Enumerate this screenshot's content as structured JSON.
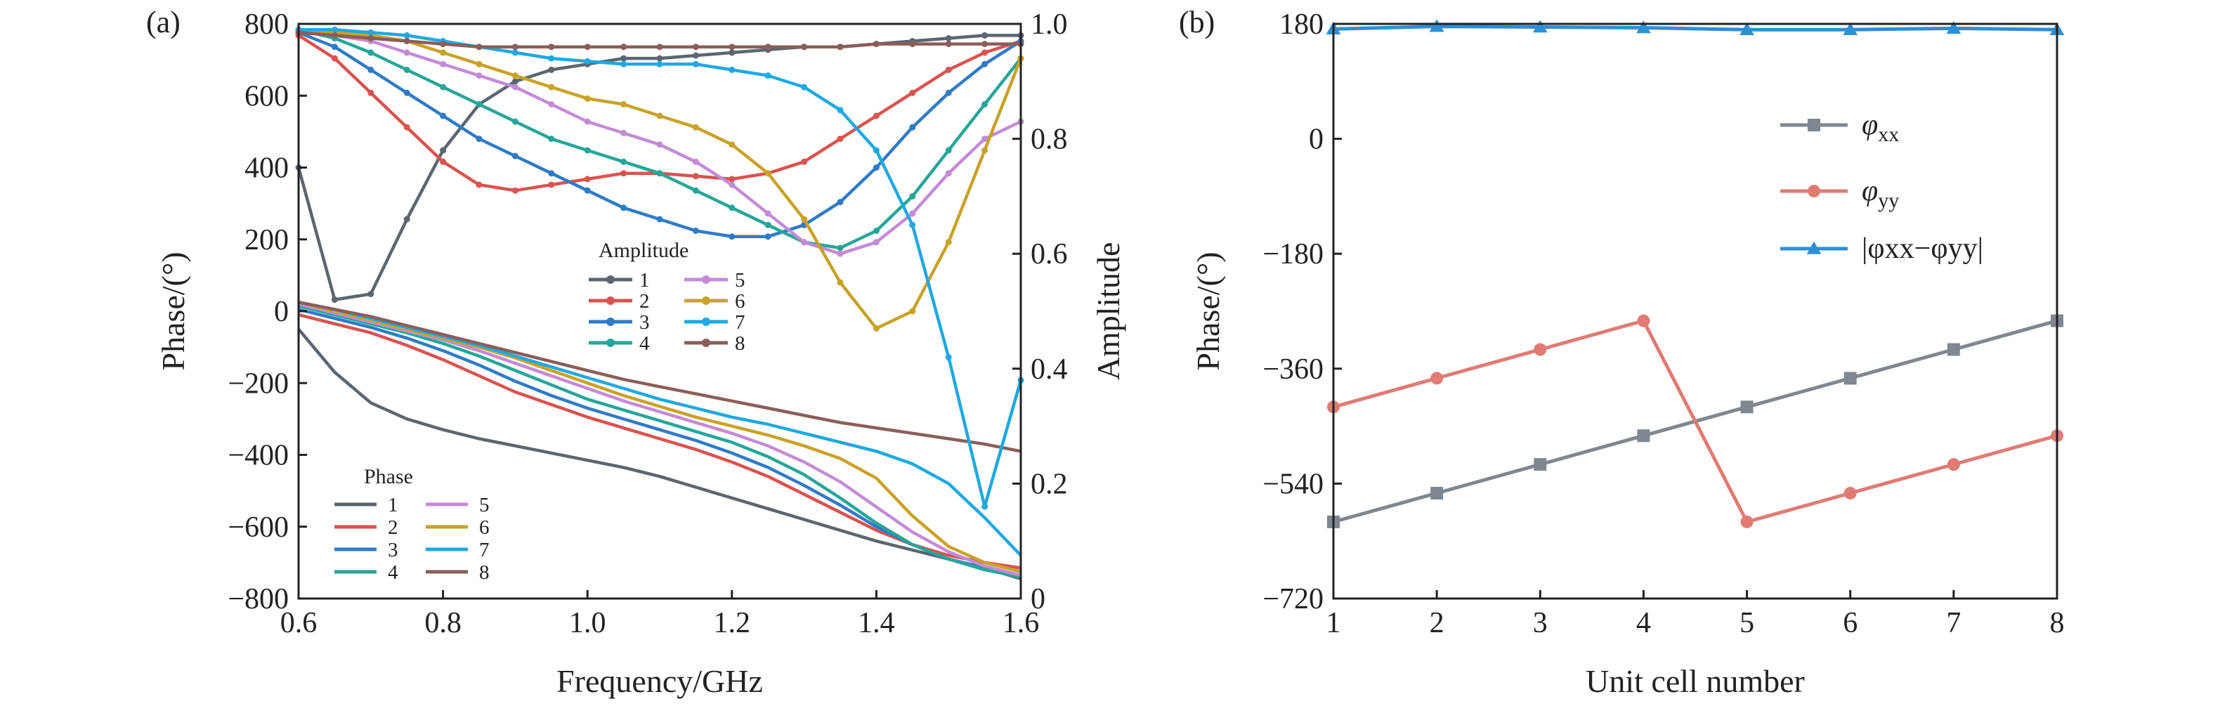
{
  "chart_data": [
    {
      "panel": "(a)",
      "type": "line",
      "xlabel": "Frequency/GHz",
      "ylabel_left": "Phase/(°)",
      "ylabel_right": "Amplitude",
      "xlim": [
        0.6,
        1.6
      ],
      "ylim_left": [
        -800,
        800
      ],
      "ylim_right": [
        0,
        1.0
      ],
      "xticks": [
        "0.6",
        "0.8",
        "1.0",
        "1.2",
        "1.4",
        "1.6"
      ],
      "yticks_left": [
        "800",
        "600",
        "400",
        "200",
        "0",
        "−200",
        "−400",
        "−600",
        "−800"
      ],
      "yticks_right": [
        "1.0",
        "0.8",
        "0.6",
        "0.4",
        "0.2",
        "0"
      ],
      "grid": false,
      "amplitude_legend_title": "Amplitude",
      "phase_legend_title": "Phase",
      "x": [
        0.6,
        0.65,
        0.7,
        0.75,
        0.8,
        0.85,
        0.9,
        0.95,
        1.0,
        1.05,
        1.1,
        1.15,
        1.2,
        1.25,
        1.3,
        1.35,
        1.4,
        1.45,
        1.5,
        1.55,
        1.6
      ],
      "amplitude_series": [
        {
          "name": "1",
          "color": "#5b6670",
          "values": [
            0.75,
            0.52,
            0.53,
            0.66,
            0.78,
            0.86,
            0.9,
            0.92,
            0.93,
            0.94,
            0.94,
            0.945,
            0.95,
            0.955,
            0.96,
            0.96,
            0.965,
            0.97,
            0.975,
            0.98,
            0.98
          ]
        },
        {
          "name": "2",
          "color": "#d9534f",
          "values": [
            0.98,
            0.94,
            0.88,
            0.82,
            0.76,
            0.72,
            0.71,
            0.72,
            0.73,
            0.74,
            0.74,
            0.735,
            0.73,
            0.74,
            0.76,
            0.8,
            0.84,
            0.88,
            0.92,
            0.95,
            0.97
          ]
        },
        {
          "name": "3",
          "color": "#2f7bc7",
          "values": [
            0.985,
            0.96,
            0.92,
            0.88,
            0.84,
            0.8,
            0.77,
            0.74,
            0.71,
            0.68,
            0.66,
            0.64,
            0.63,
            0.63,
            0.65,
            0.69,
            0.75,
            0.82,
            0.88,
            0.93,
            0.97
          ]
        },
        {
          "name": "4",
          "color": "#26a69a",
          "values": [
            0.99,
            0.975,
            0.95,
            0.92,
            0.89,
            0.86,
            0.83,
            0.8,
            0.78,
            0.76,
            0.74,
            0.71,
            0.68,
            0.65,
            0.62,
            0.61,
            0.64,
            0.7,
            0.78,
            0.86,
            0.94
          ]
        },
        {
          "name": "5",
          "color": "#c48bd8",
          "values": [
            0.99,
            0.98,
            0.97,
            0.95,
            0.93,
            0.91,
            0.89,
            0.86,
            0.83,
            0.81,
            0.79,
            0.76,
            0.72,
            0.67,
            0.62,
            0.6,
            0.62,
            0.67,
            0.74,
            0.8,
            0.83
          ]
        },
        {
          "name": "6",
          "color": "#c9a227",
          "values": [
            0.99,
            0.985,
            0.98,
            0.97,
            0.95,
            0.93,
            0.91,
            0.89,
            0.87,
            0.86,
            0.84,
            0.82,
            0.79,
            0.74,
            0.66,
            0.55,
            0.47,
            0.5,
            0.62,
            0.78,
            0.94
          ]
        },
        {
          "name": "7",
          "color": "#1ea9e1",
          "values": [
            0.99,
            0.99,
            0.985,
            0.98,
            0.97,
            0.96,
            0.95,
            0.94,
            0.935,
            0.93,
            0.93,
            0.93,
            0.92,
            0.91,
            0.89,
            0.85,
            0.78,
            0.65,
            0.42,
            0.16,
            0.38
          ]
        },
        {
          "name": "8",
          "color": "#8b5e5a",
          "values": [
            0.985,
            0.98,
            0.975,
            0.97,
            0.965,
            0.96,
            0.96,
            0.96,
            0.96,
            0.96,
            0.96,
            0.96,
            0.96,
            0.96,
            0.96,
            0.96,
            0.965,
            0.965,
            0.965,
            0.965,
            0.965
          ]
        }
      ],
      "phase_series": [
        {
          "name": "1",
          "color": "#5b6670",
          "values": [
            -50,
            -170,
            -255,
            -300,
            -330,
            -355,
            -375,
            -395,
            -415,
            -435,
            -460,
            -490,
            -520,
            -550,
            -580,
            -610,
            -640,
            -665,
            -690,
            -715,
            -745
          ]
        },
        {
          "name": "2",
          "color": "#d9534f",
          "values": [
            -10,
            -35,
            -60,
            -95,
            -135,
            -180,
            -225,
            -260,
            -295,
            -325,
            -355,
            -385,
            -420,
            -460,
            -510,
            -560,
            -610,
            -650,
            -680,
            -700,
            -715
          ]
        },
        {
          "name": "3",
          "color": "#2f7bc7",
          "values": [
            5,
            -20,
            -45,
            -75,
            -110,
            -150,
            -195,
            -235,
            -270,
            -300,
            -330,
            -360,
            -395,
            -435,
            -485,
            -540,
            -600,
            -650,
            -690,
            -715,
            -735
          ]
        },
        {
          "name": "4",
          "color": "#26a69a",
          "values": [
            15,
            -10,
            -35,
            -60,
            -90,
            -125,
            -165,
            -205,
            -245,
            -275,
            -305,
            -335,
            -365,
            -405,
            -455,
            -520,
            -590,
            -650,
            -690,
            -720,
            -740
          ]
        },
        {
          "name": "5",
          "color": "#c48bd8",
          "values": [
            20,
            -5,
            -30,
            -55,
            -80,
            -110,
            -145,
            -180,
            -215,
            -250,
            -280,
            -310,
            -340,
            -375,
            -420,
            -475,
            -545,
            -615,
            -670,
            -710,
            -735
          ]
        },
        {
          "name": "6",
          "color": "#c9a227",
          "values": [
            25,
            0,
            -25,
            -50,
            -75,
            -100,
            -130,
            -165,
            -200,
            -235,
            -265,
            -295,
            -320,
            -345,
            -375,
            -410,
            -465,
            -570,
            -655,
            -700,
            -725
          ]
        },
        {
          "name": "7",
          "color": "#1ea9e1",
          "values": [
            25,
            5,
            -20,
            -45,
            -70,
            -95,
            -125,
            -155,
            -185,
            -215,
            -245,
            -270,
            -295,
            -315,
            -340,
            -365,
            -390,
            -425,
            -480,
            -575,
            -680
          ]
        },
        {
          "name": "8",
          "color": "#8b5e5a",
          "values": [
            25,
            5,
            -15,
            -40,
            -65,
            -90,
            -115,
            -140,
            -165,
            -190,
            -210,
            -230,
            -250,
            -270,
            -290,
            -310,
            -325,
            -340,
            -355,
            -370,
            -390
          ]
        }
      ]
    },
    {
      "panel": "(b)",
      "type": "line",
      "xlabel": "Unit cell number",
      "ylabel": "Phase/(°)",
      "xlim": [
        1,
        8
      ],
      "ylim": [
        -720,
        180
      ],
      "xticks": [
        "1",
        "2",
        "3",
        "4",
        "5",
        "6",
        "7",
        "8"
      ],
      "yticks": [
        "180",
        "0",
        "−180",
        "−360",
        "−540",
        "−720"
      ],
      "grid": false,
      "legend_position": "right",
      "x": [
        1,
        2,
        3,
        4,
        5,
        6,
        7,
        8
      ],
      "series": [
        {
          "name": "φxx",
          "name_main": "φ",
          "name_sub": "xx",
          "color": "#7f8790",
          "marker": "square",
          "values": [
            -600,
            -555,
            -510,
            -465,
            -420,
            -375,
            -330,
            -285
          ]
        },
        {
          "name": "φyy",
          "name_main": "φ",
          "name_sub": "yy",
          "color": "#e07b73",
          "marker": "circle",
          "values": [
            -420,
            -375,
            -330,
            -285,
            -600,
            -555,
            -510,
            -465
          ]
        },
        {
          "name": "|φxx−φyy|",
          "color": "#2d8fd6",
          "marker": "triangle",
          "values": [
            172,
            176,
            175,
            174,
            171,
            171,
            173,
            171
          ]
        }
      ]
    }
  ]
}
